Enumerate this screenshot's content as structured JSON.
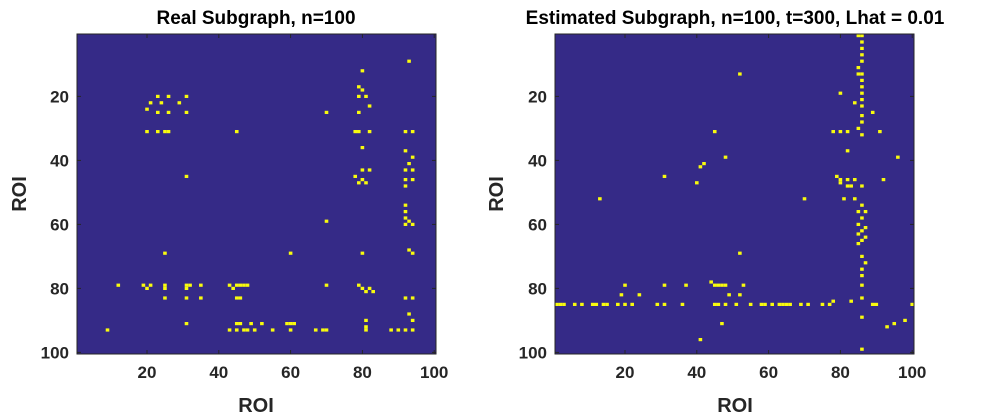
{
  "figure": {
    "background": "#ffffff"
  },
  "chart_data": [
    {
      "type": "heatmap",
      "title": "Real Subgraph, n=100",
      "xlabel": "ROI",
      "ylabel": "ROI",
      "xlim": [
        0.5,
        100.5
      ],
      "ylim": [
        0.5,
        100.5
      ],
      "y_axis_direction": "reversed",
      "xticks": [
        20,
        40,
        60,
        80,
        100
      ],
      "yticks": [
        20,
        40,
        60,
        80,
        100
      ],
      "grid": false,
      "colormap": {
        "background": "#352A87",
        "highlight": "#F9FB0E"
      },
      "cells": [
        [
          93,
          9
        ],
        [
          80,
          12
        ],
        [
          79,
          17
        ],
        [
          80,
          18
        ],
        [
          79,
          20
        ],
        [
          23,
          20
        ],
        [
          26,
          20
        ],
        [
          31,
          20
        ],
        [
          21,
          22
        ],
        [
          24,
          22
        ],
        [
          29,
          22
        ],
        [
          20,
          24
        ],
        [
          23,
          25
        ],
        [
          26,
          25
        ],
        [
          31,
          25
        ],
        [
          81,
          20
        ],
        [
          82,
          23
        ],
        [
          70,
          25
        ],
        [
          79,
          25
        ],
        [
          20,
          31
        ],
        [
          23,
          31
        ],
        [
          25,
          31
        ],
        [
          26,
          31
        ],
        [
          45,
          31
        ],
        [
          78,
          31
        ],
        [
          79,
          31
        ],
        [
          82,
          31
        ],
        [
          92,
          31
        ],
        [
          94,
          31
        ],
        [
          80,
          36
        ],
        [
          92,
          37
        ],
        [
          94,
          39
        ],
        [
          93,
          41
        ],
        [
          80,
          43
        ],
        [
          82,
          43
        ],
        [
          92,
          43
        ],
        [
          94,
          43
        ],
        [
          31,
          45
        ],
        [
          78,
          45
        ],
        [
          80,
          46
        ],
        [
          92,
          46
        ],
        [
          94,
          46
        ],
        [
          79,
          47
        ],
        [
          81,
          47
        ],
        [
          92,
          48
        ],
        [
          92,
          54
        ],
        [
          92,
          56
        ],
        [
          70,
          59
        ],
        [
          92,
          58
        ],
        [
          93,
          59
        ],
        [
          92,
          60
        ],
        [
          94,
          60
        ],
        [
          25,
          69
        ],
        [
          60,
          69
        ],
        [
          80,
          69
        ],
        [
          93,
          68
        ],
        [
          94,
          69
        ],
        [
          12,
          79
        ],
        [
          19,
          79
        ],
        [
          21,
          79
        ],
        [
          25,
          79
        ],
        [
          31,
          79
        ],
        [
          32,
          79
        ],
        [
          35,
          79
        ],
        [
          43,
          79
        ],
        [
          45,
          79
        ],
        [
          46,
          79
        ],
        [
          47,
          79
        ],
        [
          48,
          79
        ],
        [
          70,
          79
        ],
        [
          79,
          79
        ],
        [
          20,
          80
        ],
        [
          25,
          80
        ],
        [
          31,
          80
        ],
        [
          44,
          80
        ],
        [
          80,
          80
        ],
        [
          82,
          80
        ],
        [
          81,
          81
        ],
        [
          83,
          81
        ],
        [
          25,
          83
        ],
        [
          31,
          83
        ],
        [
          35,
          83
        ],
        [
          45,
          83
        ],
        [
          46,
          83
        ],
        [
          92,
          83
        ],
        [
          94,
          83
        ],
        [
          93,
          88
        ],
        [
          94,
          90
        ],
        [
          81,
          90
        ],
        [
          31,
          91
        ],
        [
          45,
          91
        ],
        [
          46,
          91
        ],
        [
          49,
          91
        ],
        [
          52,
          91
        ],
        [
          59,
          91
        ],
        [
          60,
          91
        ],
        [
          61,
          91
        ],
        [
          81,
          92
        ],
        [
          9,
          93
        ],
        [
          43,
          93
        ],
        [
          45,
          93
        ],
        [
          47,
          93
        ],
        [
          48,
          93
        ],
        [
          50,
          93
        ],
        [
          55,
          93
        ],
        [
          60,
          93
        ],
        [
          67,
          93
        ],
        [
          69,
          93
        ],
        [
          70,
          93
        ],
        [
          81,
          93
        ],
        [
          88,
          93
        ],
        [
          90,
          93
        ],
        [
          92,
          93
        ],
        [
          94,
          93
        ]
      ]
    },
    {
      "type": "heatmap",
      "title": "Estimated Subgraph, n=100, t=300, Lhat = 0.01",
      "xlabel": "ROI",
      "ylabel": "ROI",
      "xlim": [
        0.5,
        100.5
      ],
      "ylim": [
        0.5,
        100.5
      ],
      "y_axis_direction": "reversed",
      "xticks": [
        20,
        40,
        60,
        80,
        100
      ],
      "yticks": [
        20,
        40,
        60,
        80,
        100
      ],
      "grid": false,
      "colormap": {
        "background": "#352A87",
        "highlight": "#F9FB0E"
      },
      "cells": [
        [
          85,
          1
        ],
        [
          86,
          1
        ],
        [
          86,
          3
        ],
        [
          86,
          5
        ],
        [
          86,
          7
        ],
        [
          86,
          9
        ],
        [
          85,
          11
        ],
        [
          86,
          13
        ],
        [
          86,
          15
        ],
        [
          86,
          17
        ],
        [
          86,
          19
        ],
        [
          86,
          21
        ],
        [
          86,
          23
        ],
        [
          86,
          26
        ],
        [
          86,
          28
        ],
        [
          85,
          30
        ],
        [
          86,
          32
        ],
        [
          52,
          13
        ],
        [
          85,
          13
        ],
        [
          80,
          19
        ],
        [
          84,
          22
        ],
        [
          89,
          25
        ],
        [
          78,
          31
        ],
        [
          80,
          31
        ],
        [
          82,
          31
        ],
        [
          91,
          31
        ],
        [
          45,
          31
        ],
        [
          48,
          39
        ],
        [
          82,
          37
        ],
        [
          96,
          39
        ],
        [
          42,
          41
        ],
        [
          41,
          42
        ],
        [
          31,
          45
        ],
        [
          79,
          45
        ],
        [
          80,
          46
        ],
        [
          82,
          46
        ],
        [
          84,
          46
        ],
        [
          92,
          46
        ],
        [
          40,
          47
        ],
        [
          80,
          47
        ],
        [
          82,
          48
        ],
        [
          83,
          48
        ],
        [
          86,
          48
        ],
        [
          13,
          52
        ],
        [
          70,
          52
        ],
        [
          81,
          52
        ],
        [
          84,
          52
        ],
        [
          86,
          54
        ],
        [
          85,
          56
        ],
        [
          87,
          56
        ],
        [
          86,
          58
        ],
        [
          85,
          60
        ],
        [
          87,
          61
        ],
        [
          86,
          62
        ],
        [
          85,
          63
        ],
        [
          87,
          64
        ],
        [
          86,
          65
        ],
        [
          85,
          66
        ],
        [
          52,
          69
        ],
        [
          86,
          70
        ],
        [
          87,
          72
        ],
        [
          86,
          74
        ],
        [
          86,
          76
        ],
        [
          44,
          78
        ],
        [
          20,
          79
        ],
        [
          31,
          79
        ],
        [
          37,
          79
        ],
        [
          45,
          79
        ],
        [
          46,
          79
        ],
        [
          47,
          79
        ],
        [
          48,
          79
        ],
        [
          53,
          79
        ],
        [
          86,
          79
        ],
        [
          19,
          82
        ],
        [
          24,
          82
        ],
        [
          49,
          82
        ],
        [
          52,
          82
        ],
        [
          86,
          83
        ],
        [
          78,
          84
        ],
        [
          83,
          84
        ],
        [
          1,
          85
        ],
        [
          2,
          85
        ],
        [
          3,
          85
        ],
        [
          6,
          85
        ],
        [
          8,
          85
        ],
        [
          11,
          85
        ],
        [
          12,
          85
        ],
        [
          14,
          85
        ],
        [
          15,
          85
        ],
        [
          18,
          85
        ],
        [
          20,
          85
        ],
        [
          22,
          85
        ],
        [
          29,
          85
        ],
        [
          31,
          85
        ],
        [
          36,
          85
        ],
        [
          45,
          85
        ],
        [
          46,
          85
        ],
        [
          48,
          85
        ],
        [
          51,
          85
        ],
        [
          55,
          85
        ],
        [
          58,
          85
        ],
        [
          59,
          85
        ],
        [
          61,
          85
        ],
        [
          63,
          85
        ],
        [
          64,
          85
        ],
        [
          65,
          85
        ],
        [
          66,
          85
        ],
        [
          69,
          85
        ],
        [
          71,
          85
        ],
        [
          75,
          85
        ],
        [
          77,
          85
        ],
        [
          89,
          85
        ],
        [
          90,
          85
        ],
        [
          100,
          85
        ],
        [
          86,
          89
        ],
        [
          47,
          91
        ],
        [
          98,
          90
        ],
        [
          95,
          91
        ],
        [
          93,
          92
        ],
        [
          41,
          96
        ],
        [
          86,
          99
        ]
      ]
    }
  ]
}
